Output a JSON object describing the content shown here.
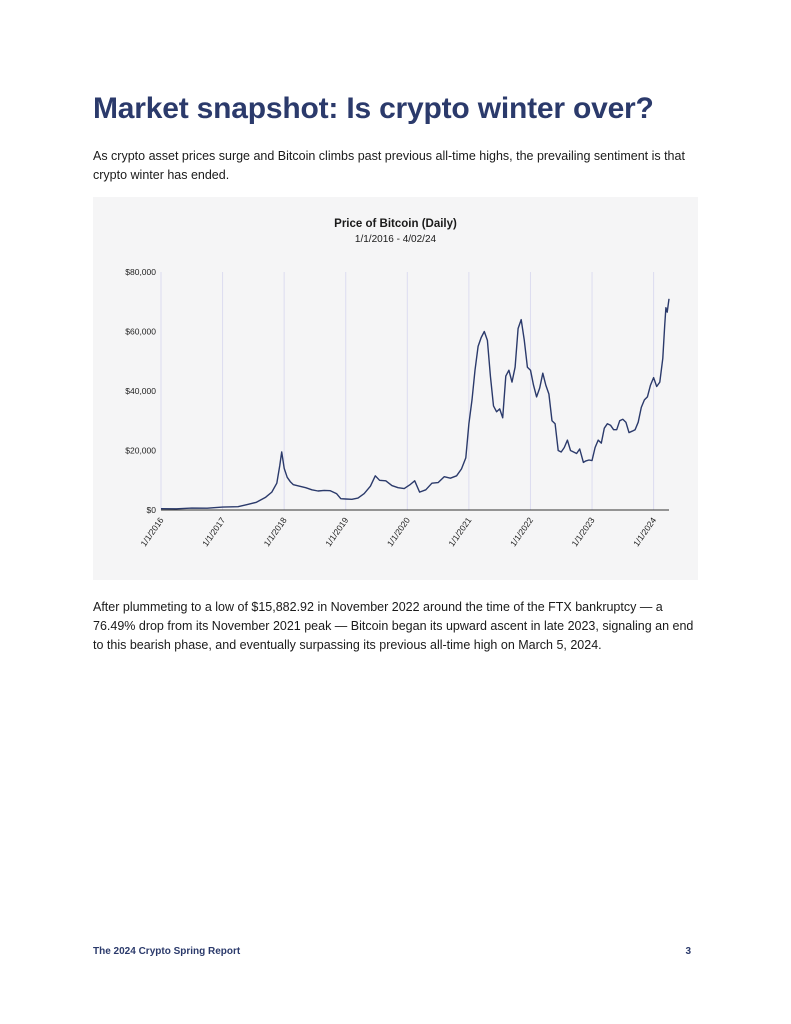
{
  "page": {
    "title": "Market snapshot: Is crypto winter over?",
    "intro": "As crypto asset prices surge and Bitcoin climbs past previous all-time highs, the prevailing sentiment is that crypto winter has ended.",
    "after": "After plummeting to a low of $15,882.92 in November 2022 around the time of the FTX bankruptcy — a 76.49% drop from its November 2021 peak — Bitcoin began its upward ascent in late 2023, signaling an end to this bearish phase, and eventually surpassing its previous all-time high on March 5, 2024."
  },
  "footer": {
    "report": "The 2024 Crypto Spring Report",
    "page_number": "3"
  },
  "colors": {
    "heading": "#2b3a6b",
    "line": "#2b3a6b",
    "panel": "#f5f5f6",
    "grid": "#dcdcf0"
  },
  "chart_data": {
    "type": "line",
    "title": "Price of Bitcoin (Daily)",
    "subtitle": "1/1/2016 - 4/02/24",
    "xlabel": "",
    "ylabel": "",
    "ylim": [
      0,
      80000
    ],
    "yticks": [
      0,
      20000,
      40000,
      60000,
      80000
    ],
    "ytick_labels": [
      "$0",
      "$20,000",
      "$40,000",
      "$60,000",
      "$80,000"
    ],
    "x_range": [
      2016.0,
      2024.25
    ],
    "xticks": [
      2016,
      2017,
      2018,
      2019,
      2020,
      2021,
      2022,
      2023,
      2024
    ],
    "xtick_labels": [
      "1/1/2016",
      "1/1/2017",
      "1/1/2018",
      "1/1/2019",
      "1/1/2020",
      "1/1/2021",
      "1/1/2022",
      "1/1/2023",
      "1/1/2024"
    ],
    "grid": "vertical",
    "series": [
      {
        "name": "Bitcoin price (USD)",
        "x": [
          2016.0,
          2016.25,
          2016.5,
          2016.75,
          2017.0,
          2017.25,
          2017.4,
          2017.55,
          2017.7,
          2017.8,
          2017.88,
          2017.93,
          2017.96,
          2018.0,
          2018.05,
          2018.1,
          2018.15,
          2018.25,
          2018.35,
          2018.45,
          2018.55,
          2018.65,
          2018.75,
          2018.85,
          2018.92,
          2019.0,
          2019.1,
          2019.2,
          2019.3,
          2019.4,
          2019.48,
          2019.55,
          2019.65,
          2019.75,
          2019.85,
          2019.95,
          2020.05,
          2020.12,
          2020.2,
          2020.3,
          2020.4,
          2020.5,
          2020.6,
          2020.7,
          2020.8,
          2020.88,
          2020.95,
          2021.0,
          2021.05,
          2021.1,
          2021.15,
          2021.2,
          2021.25,
          2021.3,
          2021.35,
          2021.4,
          2021.45,
          2021.5,
          2021.55,
          2021.6,
          2021.65,
          2021.7,
          2021.75,
          2021.8,
          2021.85,
          2021.9,
          2021.95,
          2022.0,
          2022.05,
          2022.1,
          2022.15,
          2022.2,
          2022.25,
          2022.3,
          2022.35,
          2022.4,
          2022.45,
          2022.5,
          2022.55,
          2022.6,
          2022.65,
          2022.7,
          2022.75,
          2022.8,
          2022.86,
          2022.9,
          2022.95,
          2023.0,
          2023.05,
          2023.1,
          2023.15,
          2023.2,
          2023.25,
          2023.3,
          2023.35,
          2023.4,
          2023.45,
          2023.5,
          2023.55,
          2023.6,
          2023.65,
          2023.7,
          2023.75,
          2023.8,
          2023.85,
          2023.9,
          2023.95,
          2024.0,
          2024.05,
          2024.1,
          2024.15,
          2024.18,
          2024.2,
          2024.22,
          2024.25
        ],
        "values": [
          430,
          420,
          650,
          620,
          970,
          1100,
          1800,
          2600,
          4300,
          6000,
          9000,
          15000,
          19500,
          14000,
          11000,
          9500,
          8500,
          8000,
          7500,
          6800,
          6400,
          6600,
          6500,
          5500,
          3800,
          3700,
          3600,
          4000,
          5500,
          8000,
          11500,
          10000,
          9800,
          8200,
          7500,
          7200,
          8600,
          9800,
          6000,
          6800,
          9000,
          9200,
          11200,
          10700,
          11500,
          13800,
          17500,
          29000,
          37000,
          47000,
          55000,
          58000,
          60000,
          57000,
          45000,
          35000,
          33000,
          34000,
          31000,
          45000,
          47000,
          43000,
          48000,
          61000,
          64000,
          57000,
          48000,
          47000,
          42000,
          38000,
          41000,
          46000,
          42000,
          39000,
          30000,
          29000,
          20000,
          19500,
          21000,
          23500,
          20000,
          19500,
          19000,
          20500,
          16000,
          16500,
          16800,
          16600,
          21000,
          23500,
          22500,
          27500,
          29000,
          28500,
          27000,
          27000,
          30000,
          30500,
          29500,
          26000,
          26500,
          27000,
          29500,
          34500,
          37000,
          38000,
          42000,
          44500,
          41500,
          43000,
          51000,
          62000,
          68000,
          66500,
          71000
        ]
      }
    ]
  }
}
